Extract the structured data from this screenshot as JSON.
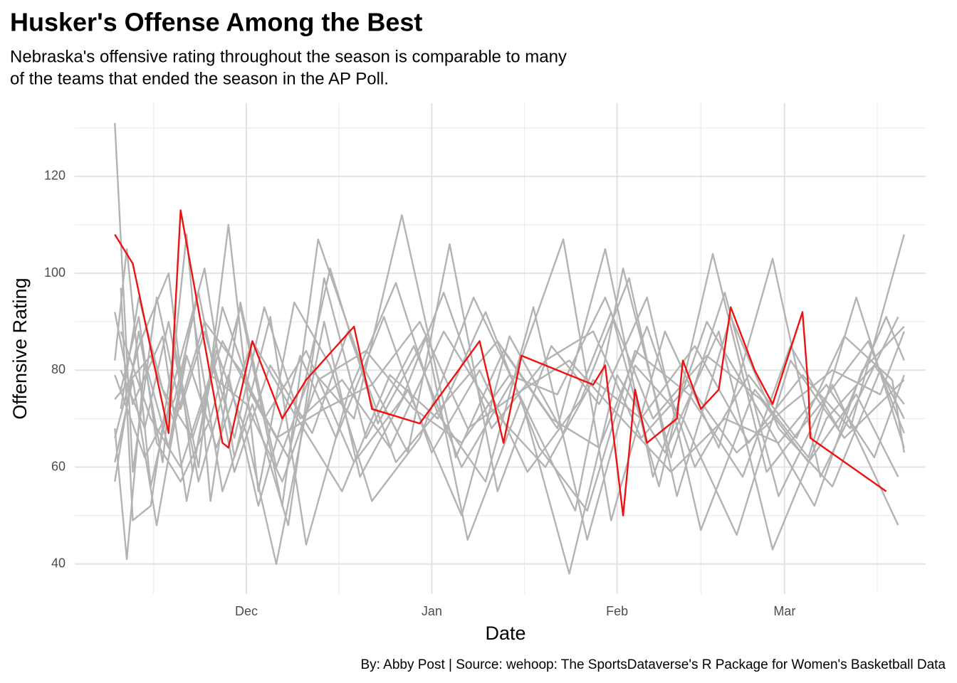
{
  "chart_data": {
    "type": "line",
    "title": "Husker's Offense Among the Best",
    "subtitle": [
      "Nebraska's offensive rating throughout the season is comparable to many",
      "of the teams that ended the season in the AP Poll."
    ],
    "xlabel": "Date",
    "ylabel": "Offensive Rating",
    "caption": "By: Abby Post  | Source: wehoop: The SportsDataverse's R Package for Women's Basketball Data",
    "xlim": [
      -28.7,
      113.6
    ],
    "xticks": [
      {
        "value": 0,
        "label": "Dec"
      },
      {
        "value": 31,
        "label": "Jan"
      },
      {
        "value": 62,
        "label": "Feb"
      },
      {
        "value": 90,
        "label": "Mar"
      }
    ],
    "xminorticks": [
      -15.5,
      15.5,
      46.5,
      76,
      105.5
    ],
    "ylim": [
      33.8,
      135.1
    ],
    "yticks": [
      40,
      60,
      80,
      100,
      120
    ],
    "yminorticks": [
      50,
      70,
      90,
      110,
      130
    ],
    "grid": true,
    "series": [
      {
        "color": "#b3b3b3",
        "x": [
          -22,
          -19,
          -15,
          -11,
          -7,
          -2,
          3,
          9,
          16,
          24,
          33,
          41,
          50,
          58,
          66,
          75,
          84,
          93,
          101,
          110
        ],
        "values": [
          131,
          59,
          95,
          72,
          88,
          66,
          93,
          70,
          78,
          64,
          88,
          72,
          60,
          78,
          70,
          85,
          65,
          79,
          68,
          108
        ]
      },
      {
        "color": "#b3b3b3",
        "x": [
          -22,
          -18,
          -14,
          -10,
          -6,
          -1,
          5,
          11,
          18,
          26,
          35,
          43,
          52,
          60,
          68,
          77,
          86,
          95,
          103,
          110
        ],
        "values": [
          57,
          88,
          61,
          108,
          53,
          94,
          60,
          80,
          70,
          112,
          62,
          84,
          68,
          105,
          58,
          90,
          71,
          52,
          80,
          89
        ]
      },
      {
        "color": "#b3b3b3",
        "x": [
          -21,
          -19,
          -16,
          -12,
          -8,
          -3,
          2,
          8,
          14,
          21,
          29,
          38,
          46,
          55,
          63,
          71,
          80,
          89,
          98,
          109
        ],
        "values": [
          97,
          49,
          52,
          85,
          60,
          110,
          55,
          94,
          81,
          53,
          66,
          95,
          74,
          51,
          101,
          62,
          96,
          54,
          77,
          48
        ]
      },
      {
        "color": "#b3b3b3",
        "x": [
          -22,
          -20,
          -17,
          -13,
          -9,
          -4,
          1,
          7,
          13,
          20,
          28,
          36,
          45,
          53,
          61,
          70,
          79,
          88,
          96,
          109
        ],
        "values": [
          68,
          41,
          82,
          64,
          92,
          55,
          73,
          48,
          99,
          66,
          85,
          60,
          79,
          107,
          49,
          88,
          64,
          103,
          58,
          91
        ]
      },
      {
        "color": "#b3b3b3",
        "x": [
          -22,
          -20,
          -16,
          -12,
          -7,
          -2,
          4,
          10,
          17,
          25,
          32,
          40,
          48,
          57,
          65,
          73,
          82,
          91,
          100,
          110
        ],
        "values": [
          82,
          105,
          56,
          78,
          101,
          62,
          91,
          44,
          75,
          98,
          71,
          57,
          93,
          45,
          81,
          70,
          46,
          82,
          66,
          78
        ]
      },
      {
        "color": "#b3b3b3",
        "x": [
          -21,
          -18,
          -15,
          -11,
          -6,
          -1,
          6,
          12,
          19,
          27,
          34,
          42,
          51,
          59,
          67,
          76,
          85,
          94,
          102,
          110
        ],
        "values": [
          76,
          91,
          65,
          57,
          70,
          93,
          52,
          107,
          82,
          63,
          106,
          55,
          85,
          73,
          95,
          47,
          76,
          62,
          95,
          64
        ]
      },
      {
        "color": "#b3b3b3",
        "x": [
          -22,
          -19,
          -14,
          -10,
          -5,
          0,
          5,
          13,
          19,
          27,
          36,
          44,
          53,
          61,
          69,
          78,
          87,
          96,
          104,
          110
        ],
        "values": [
          92,
          73,
          87,
          53,
          84,
          67,
          40,
          90,
          58,
          76,
          50,
          87,
          67,
          92,
          56,
          104,
          59,
          73,
          86,
          67
        ]
      },
      {
        "color": "#b3b3b3",
        "x": [
          -22,
          -18,
          -13,
          -9,
          -4,
          1,
          7,
          14,
          22,
          30,
          37,
          46,
          54,
          62,
          70,
          79,
          88,
          97,
          105,
          110
        ],
        "values": [
          66,
          85,
          100,
          59,
          93,
          75,
          62,
          101,
          69,
          87,
          45,
          74,
          38,
          79,
          63,
          88,
          43,
          70,
          81,
          73
        ]
      },
      {
        "color": "#b3b3b3",
        "x": [
          -21,
          -17,
          -13,
          -8,
          -3,
          2,
          9,
          15,
          23,
          31,
          39,
          47,
          56,
          64,
          72,
          81,
          89,
          98,
          106,
          110
        ],
        "values": [
          80,
          68,
          90,
          57,
          79,
          52,
          83,
          66,
          91,
          63,
          80,
          59,
          74,
          99,
          54,
          91,
          68,
          56,
          80,
          70
        ]
      },
      {
        "color": "#b3b3b3",
        "x": [
          -22,
          -19,
          -15,
          -10,
          -5,
          1,
          8,
          16,
          24,
          32,
          40,
          49,
          57,
          65,
          74,
          83,
          91,
          99,
          107,
          110
        ],
        "values": [
          61,
          78,
          48,
          83,
          64,
          86,
          71,
          55,
          79,
          70,
          92,
          64,
          51,
          84,
          75,
          58,
          85,
          68,
          91,
          82
        ]
      },
      {
        "color": "#b3b3b3",
        "x": [
          -21,
          -18,
          -14,
          -9,
          -4,
          3,
          10,
          18,
          26,
          33,
          41,
          50,
          58,
          66,
          74,
          82,
          90,
          98,
          106,
          110
        ],
        "values": [
          72,
          95,
          76,
          66,
          86,
          70,
          84,
          61,
          74,
          96,
          68,
          82,
          88,
          66,
          77,
          63,
          72,
          80,
          75,
          88
        ]
      },
      {
        "color": "#b3b3b3",
        "x": [
          -22,
          -17,
          -12,
          -8,
          -2,
          4,
          11,
          17,
          25,
          33,
          42,
          51,
          59,
          67,
          75,
          84,
          92,
          100,
          108,
          110
        ],
        "values": [
          79,
          62,
          74,
          96,
          59,
          81,
          67,
          88,
          61,
          73,
          86,
          70,
          64,
          89,
          60,
          79,
          66,
          87,
          78,
          63
        ]
      },
      {
        "color": "#b3b3b3",
        "x": [
          -21,
          -16,
          -11,
          -6,
          0,
          6,
          12,
          20,
          28,
          36,
          44,
          52,
          60,
          68,
          77,
          86,
          94,
          102,
          109
        ],
        "values": [
          88,
          70,
          60,
          79,
          73,
          57,
          78,
          84,
          72,
          65,
          79,
          75,
          95,
          70,
          83,
          74,
          61,
          75,
          58
        ]
      },
      {
        "color": "#b3b3b3",
        "x": [
          -22,
          -16,
          -12,
          -7,
          -1,
          5,
          13,
          21,
          29,
          37,
          45,
          54,
          62,
          71,
          80,
          89,
          97,
          105,
          110
        ],
        "values": [
          74,
          83,
          69,
          90,
          80,
          66,
          72,
          77,
          90,
          68,
          75,
          82,
          71,
          59,
          70,
          65,
          77,
          62,
          79
        ]
      },
      {
        "color": "#ee1111",
        "x": [
          -22,
          -19,
          -13,
          -11,
          -4,
          -3,
          1,
          6,
          10,
          18,
          21,
          29,
          39,
          43,
          46,
          58,
          60,
          63,
          65,
          67,
          72,
          73,
          76,
          79,
          81,
          85,
          88,
          93,
          94,
          94.3,
          107
        ],
        "values": [
          108,
          102,
          67,
          113,
          65,
          64,
          86,
          70,
          78,
          89,
          72,
          69,
          86,
          65,
          83,
          77,
          81,
          50,
          76,
          65,
          70,
          82,
          72,
          76,
          93,
          80,
          73,
          92,
          76,
          66,
          55
        ]
      }
    ]
  }
}
